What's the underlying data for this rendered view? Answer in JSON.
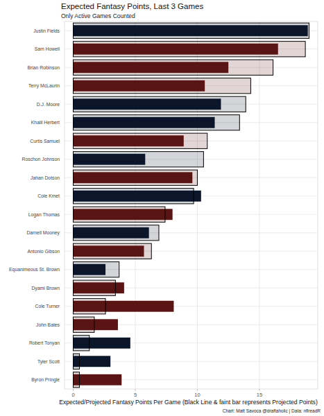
{
  "chart_data": {
    "type": "bar",
    "orientation": "horizontal",
    "title": "Expected Fantasy Points, Last 3 Games",
    "subtitle": "Only Active Games Counted",
    "x_label": "Expected/Projected Fantasy Points Per Game (Black Line & faint bar represents Projected Points)",
    "caption": "Chart: Matt Savoca @draftaholic | Data: nflreadR",
    "categories": [
      "Justin Fields",
      "Sam Howell",
      "Brian Robinson",
      "Terry McLaurin",
      "D.J. Moore",
      "Khalil Herbert",
      "Curtis Samuel",
      "Roschon Johnson",
      "Jahan Dotson",
      "Cole Kmet",
      "Logan Thomas",
      "Darnell Mooney",
      "Antonio Gibson",
      "Equanimeous St. Brown",
      "Dyami Brown",
      "Cole Turner",
      "John Bates",
      "Robert Tonyan",
      "Tyler Scott",
      "Byron Pringle"
    ],
    "series": [
      {
        "values": [
          18.9,
          16.5,
          12.5,
          10.6,
          11.9,
          11.4,
          8.9,
          5.8,
          9.6,
          10.3,
          8.0,
          6.1,
          5.7,
          2.6,
          4.1,
          8.1,
          3.6,
          4.6,
          3.0,
          3.9
        ],
        "colors": [
          "#0b162a",
          "#5a1414",
          "#5a1414",
          "#5a1414",
          "#0b162a",
          "#0b162a",
          "#5a1414",
          "#0b162a",
          "#5a1414",
          "#0b162a",
          "#5a1414",
          "#0b162a",
          "#5a1414",
          "#0b162a",
          "#5a1414",
          "#5a1414",
          "#5a1414",
          "#0b162a",
          "#0b162a",
          "#5a1414"
        ]
      },
      {
        "values": [
          19.0,
          18.7,
          16.1,
          14.3,
          13.9,
          13.4,
          10.8,
          10.5,
          10.0,
          9.7,
          7.4,
          6.9,
          6.3,
          3.7,
          3.4,
          2.6,
          1.7,
          1.3,
          0.5,
          0.5
        ],
        "colors": [
          "#0b162a",
          "#5a1414",
          "#5a1414",
          "#5a1414",
          "#0b162a",
          "#0b162a",
          "#5a1414",
          "#0b162a",
          "#5a1414",
          "#0b162a",
          "#5a1414",
          "#0b162a",
          "#5a1414",
          "#0b162a",
          "#5a1414",
          "#5a1414",
          "#5a1414",
          "#0b162a",
          "#0b162a",
          "#5a1414"
        ]
      }
    ],
    "xlim": [
      -0.7,
      19.7
    ],
    "xticks": [
      0,
      5,
      10,
      15
    ],
    "grid": true
  }
}
